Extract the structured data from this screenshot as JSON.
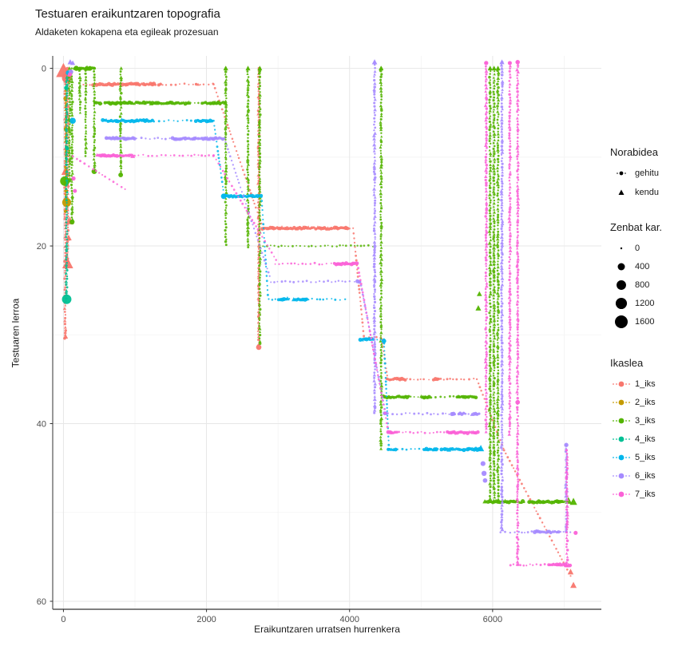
{
  "title": "Testuaren eraikuntzaren topografia",
  "subtitle": "Aldaketen kokapena eta egileak prozesuan",
  "chart_data": {
    "type": "scatter",
    "title": "Testuaren eraikuntzaren topografia",
    "subtitle": "Aldaketen kokapena eta egileak prozesuan",
    "xlabel": "Eraikuntzaren urratsen hurrenkera",
    "ylabel": "Testuaren lerroa",
    "x_ticks": [
      0,
      2000,
      4000,
      6000
    ],
    "x_minor": [
      1000,
      3000,
      5000,
      7000
    ],
    "y_ticks": [
      0,
      20,
      40,
      60
    ],
    "y_minor": [
      10,
      30,
      50
    ],
    "xlim": [
      -150,
      7520
    ],
    "ylim": [
      -1.4,
      60.9
    ],
    "y_reversed": true,
    "grid": "on",
    "legend_position": "right",
    "legends": {
      "direction": {
        "title": "Norabidea",
        "items": [
          {
            "label": "gehitu",
            "shape": "circle"
          },
          {
            "label": "kendu",
            "shape": "triangle"
          }
        ]
      },
      "size": {
        "title": "Zenbat kar.",
        "items": [
          {
            "label": "0",
            "value": 0
          },
          {
            "label": "400",
            "value": 400
          },
          {
            "label": "800",
            "value": 800
          },
          {
            "label": "1200",
            "value": 1200
          },
          {
            "label": "1600",
            "value": 1600
          }
        ]
      },
      "student": {
        "title": "Ikaslea",
        "items": [
          {
            "label": "1_iks",
            "color": "#F8766D"
          },
          {
            "label": "2_iks",
            "color": "#C49A00"
          },
          {
            "label": "3_iks",
            "color": "#53B400"
          },
          {
            "label": "4_iks",
            "color": "#00C094"
          },
          {
            "label": "5_iks",
            "color": "#00B6EB"
          },
          {
            "label": "6_iks",
            "color": "#A58AFF"
          },
          {
            "label": "7_iks",
            "color": "#FB61D7"
          }
        ]
      }
    },
    "series": [
      {
        "name": "1_iks",
        "color": "#F8766D",
        "bands": [
          [
            1.8,
            280,
            2100
          ],
          [
            18,
            2780,
            4050
          ],
          [
            30.3,
            4200,
            4450
          ],
          [
            35,
            4520,
            5780
          ]
        ],
        "columns": [
          [
            25,
            0,
            30.5
          ],
          [
            60,
            0,
            22
          ],
          [
            2730,
            0,
            31.3
          ]
        ],
        "paths": [
          [
            [
              2100,
              1.8
            ],
            [
              2780,
              17.8
            ]
          ],
          [
            [
              4050,
              18
            ],
            [
              4200,
              30.2
            ]
          ],
          [
            [
              4450,
              30.5
            ],
            [
              4530,
              34.8
            ]
          ],
          [
            [
              5780,
              35
            ],
            [
              6160,
              43
            ],
            [
              7120,
              57.6
            ]
          ]
        ],
        "points": [
          [
            0,
            0.3,
            1,
            1600
          ],
          [
            45,
            1.1,
            0,
            800
          ],
          [
            30,
            11.6,
            1,
            420
          ],
          [
            90,
            17.2,
            1,
            330
          ],
          [
            75,
            19.1,
            1,
            150
          ],
          [
            60,
            22,
            1,
            800
          ],
          [
            30,
            30.2,
            1,
            90
          ],
          [
            7090,
            56.7,
            1,
            160
          ],
          [
            7130,
            58.2,
            1,
            200
          ],
          [
            2730,
            31.4,
            0,
            180
          ]
        ]
      },
      {
        "name": "2_iks",
        "color": "#C49A00",
        "bands": [],
        "columns": [
          [
            35,
            2.5,
            15
          ]
        ],
        "paths": [],
        "points": [
          [
            45,
            15.1,
            0,
            700
          ],
          [
            25,
            3.4,
            0,
            60
          ],
          [
            30,
            6.8,
            0,
            50
          ],
          [
            38,
            13.8,
            0,
            60
          ],
          [
            30,
            16.1,
            0,
            40
          ]
        ]
      },
      {
        "name": "3_iks",
        "color": "#53B400",
        "bands": [
          [
            0,
            150,
            430
          ],
          [
            3.9,
            440,
            2280
          ],
          [
            20,
            2790,
            4330
          ],
          [
            37,
            4470,
            5780
          ],
          [
            48.8,
            5890,
            7130
          ]
        ],
        "columns": [
          [
            85,
            0,
            13
          ],
          [
            120,
            0,
            17.3
          ],
          [
            230,
            0,
            5
          ],
          [
            310,
            0,
            10
          ],
          [
            430,
            0,
            11.5
          ],
          [
            800,
            0,
            12
          ],
          [
            2270,
            0,
            20
          ],
          [
            2580,
            0,
            20.5
          ],
          [
            2745,
            0,
            31
          ],
          [
            4440,
            0,
            43
          ],
          [
            5965,
            0,
            48.8
          ],
          [
            6020,
            0,
            48.8
          ],
          [
            6075,
            0,
            48.8
          ]
        ],
        "paths": [],
        "points": [
          [
            20,
            12.7,
            0,
            800
          ],
          [
            430,
            11.6,
            0,
            180
          ],
          [
            120,
            17.3,
            0,
            150
          ],
          [
            800,
            12,
            0,
            120
          ],
          [
            2270,
            0,
            1,
            90
          ],
          [
            2580,
            0,
            1,
            90
          ],
          [
            2745,
            0,
            1,
            90
          ],
          [
            4440,
            0,
            1,
            90
          ],
          [
            5965,
            0,
            1,
            90
          ],
          [
            6020,
            0,
            1,
            90
          ],
          [
            6075,
            0,
            1,
            90
          ],
          [
            5800,
            27,
            1,
            140
          ],
          [
            5815,
            25.4,
            1,
            110
          ],
          [
            7060,
            48.7,
            1,
            260
          ],
          [
            7130,
            48.8,
            1,
            300
          ],
          [
            180,
            0,
            0,
            160
          ],
          [
            330,
            0,
            1,
            150
          ],
          [
            370,
            0,
            0,
            130
          ]
        ]
      },
      {
        "name": "4_iks",
        "color": "#00C094",
        "bands": [],
        "columns": [
          [
            45,
            1,
            26
          ]
        ],
        "paths": [],
        "points": [
          [
            45,
            26,
            0,
            800
          ],
          [
            40,
            2.2,
            0,
            100
          ],
          [
            50,
            9,
            0,
            80
          ]
        ]
      },
      {
        "name": "5_iks",
        "color": "#00B6EB",
        "bands": [
          [
            5.9,
            550,
            2100
          ],
          [
            14.4,
            2240,
            2770
          ],
          [
            26,
            2870,
            3990
          ],
          [
            30.5,
            4150,
            4480
          ],
          [
            42.9,
            4540,
            5830
          ]
        ],
        "columns": [],
        "paths": [
          [
            [
              2100,
              5.9
            ],
            [
              2245,
              14.3
            ]
          ],
          [
            [
              2770,
              14.5
            ],
            [
              2860,
              25.8
            ]
          ],
          [
            [
              4480,
              30.5
            ],
            [
              4550,
              42.7
            ]
          ]
        ],
        "points": [
          [
            130,
            5.9,
            0,
            260
          ],
          [
            2240,
            14.4,
            0,
            200
          ],
          [
            5835,
            42.8,
            1,
            220
          ],
          [
            4480,
            30.7,
            0,
            120
          ],
          [
            65,
            0.5,
            0,
            130
          ]
        ]
      },
      {
        "name": "6_iks",
        "color": "#A58AFF",
        "bands": [
          [
            7.9,
            600,
            2250
          ],
          [
            24,
            2900,
            4150
          ],
          [
            38.9,
            4490,
            5835
          ],
          [
            52.2,
            6110,
            7090
          ]
        ],
        "columns": [
          [
            4350,
            -0.7,
            38.9
          ],
          [
            6130,
            -0.7,
            52.2
          ],
          [
            7030,
            42.5,
            52.2
          ]
        ],
        "paths": [
          [
            [
              2250,
              7.9
            ],
            [
              2900,
              23.8
            ]
          ],
          [
            [
              4150,
              24
            ],
            [
              4500,
              38.7
            ]
          ]
        ],
        "points": [
          [
            95,
            -0.7,
            1,
            120
          ],
          [
            130,
            -0.6,
            1,
            90
          ],
          [
            4350,
            -0.7,
            1,
            120
          ],
          [
            6130,
            -0.7,
            1,
            100
          ],
          [
            5865,
            44.5,
            0,
            140
          ],
          [
            5880,
            45.6,
            0,
            160
          ],
          [
            5895,
            46.4,
            0,
            110
          ],
          [
            7030,
            42.4,
            0,
            90
          ],
          [
            105,
            0.4,
            0,
            110
          ]
        ]
      },
      {
        "name": "7_iks",
        "color": "#FB61D7",
        "bands": [
          [
            9.8,
            470,
            2100
          ],
          [
            22,
            2960,
            4110
          ],
          [
            41,
            4540,
            5820
          ],
          [
            55.9,
            6250,
            7090
          ]
        ],
        "columns": [
          [
            5910,
            -0.6,
            41
          ],
          [
            6240,
            -0.6,
            41.5
          ],
          [
            6350,
            -0.7,
            55.9
          ],
          [
            7040,
            43,
            55.9
          ]
        ],
        "paths": [
          [
            [
              2100,
              9.8
            ],
            [
              2990,
              21.8
            ]
          ],
          [
            [
              130,
              9.9
            ],
            [
              900,
              13.8
            ]
          ],
          [
            [
              4110,
              22
            ],
            [
              4540,
              40.8
            ]
          ]
        ],
        "points": [
          [
            5910,
            -0.6,
            0,
            90
          ],
          [
            6240,
            -0.6,
            0,
            80
          ],
          [
            6350,
            -0.7,
            0,
            100
          ],
          [
            7160,
            52.3,
            0,
            80
          ],
          [
            6350,
            37.6,
            0,
            110
          ],
          [
            140,
            12.4,
            0,
            90
          ],
          [
            160,
            13.8,
            0,
            70
          ],
          [
            90,
            0.7,
            0,
            90
          ]
        ]
      }
    ]
  }
}
